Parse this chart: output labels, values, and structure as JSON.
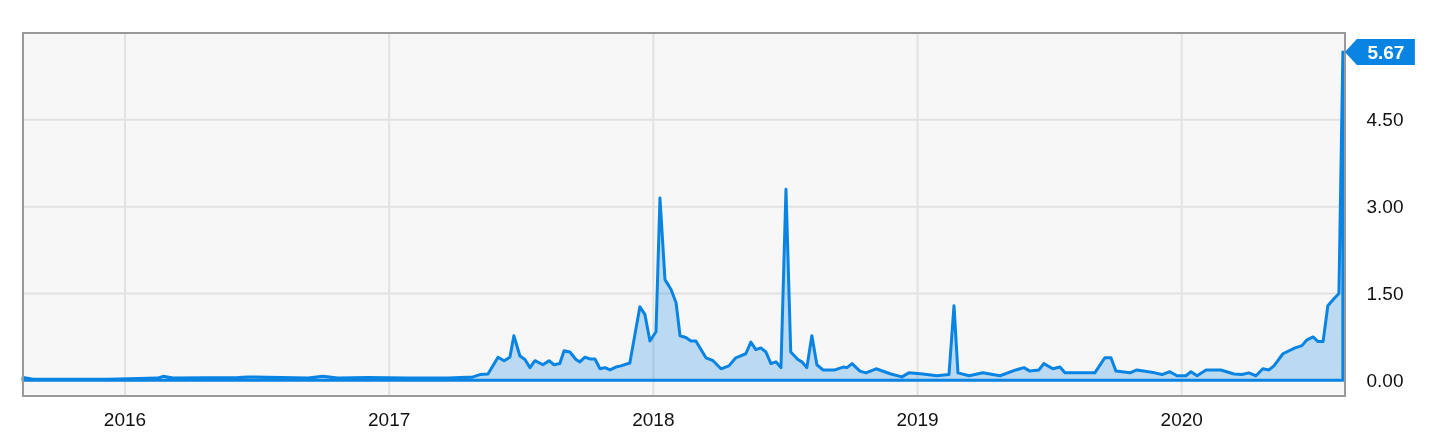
{
  "chart_data": {
    "type": "area",
    "xlim": [
      2015.614,
      2020.618
    ],
    "ylim": [
      -0.27,
      6.0
    ],
    "xticks": [
      2016,
      2017,
      2018,
      2019,
      2020
    ],
    "yticks": [
      {
        "value": 0,
        "label": "0.00"
      },
      {
        "value": 1.5,
        "label": "1.50"
      },
      {
        "value": 3,
        "label": "3.00"
      },
      {
        "value": 4.5,
        "label": "4.50"
      }
    ],
    "grid": true,
    "x": [
      2015.614,
      2015.652,
      2015.936,
      2016.125,
      2016.144,
      2016.182,
      2016.428,
      2016.466,
      2016.693,
      2016.749,
      2016.806,
      2016.92,
      2017.071,
      2017.223,
      2017.317,
      2017.344,
      2017.374,
      2017.412,
      2017.435,
      2017.457,
      2017.472,
      2017.495,
      2017.514,
      2017.533,
      2017.552,
      2017.582,
      2017.605,
      2017.624,
      2017.646,
      2017.662,
      2017.684,
      2017.707,
      2017.722,
      2017.741,
      2017.76,
      2017.779,
      2017.798,
      2017.817,
      2017.836,
      2017.858,
      2017.877,
      2017.911,
      2017.949,
      2017.968,
      2017.987,
      2018.01,
      2018.025,
      2018.044,
      2018.067,
      2018.086,
      2018.101,
      2018.123,
      2018.142,
      2018.161,
      2018.199,
      2018.226,
      2018.256,
      2018.286,
      2018.312,
      2018.35,
      2018.369,
      2018.388,
      2018.407,
      2018.426,
      2018.445,
      2018.464,
      2018.483,
      2018.502,
      2018.52,
      2018.547,
      2018.562,
      2018.581,
      2018.6,
      2018.619,
      2018.642,
      2018.687,
      2018.718,
      2018.733,
      2018.752,
      2018.782,
      2018.805,
      2018.843,
      2018.899,
      2018.941,
      2018.967,
      2019.02,
      2019.073,
      2019.119,
      2019.138,
      2019.153,
      2019.195,
      2019.247,
      2019.312,
      2019.372,
      2019.403,
      2019.425,
      2019.459,
      2019.478,
      2019.512,
      2019.539,
      2019.558,
      2019.671,
      2019.709,
      2019.732,
      2019.751,
      2019.804,
      2019.83,
      2019.898,
      2019.925,
      2019.955,
      2019.982,
      2020.016,
      2020.035,
      2020.058,
      2020.092,
      2020.148,
      2020.198,
      2020.228,
      2020.254,
      2020.281,
      2020.307,
      2020.33,
      2020.349,
      2020.383,
      2020.429,
      2020.455,
      2020.474,
      2020.497,
      2020.516,
      2020.535,
      2020.553,
      2020.576,
      2020.595,
      2020.61
    ],
    "series": [
      {
        "color": "#0984e3",
        "values": [
          0.05,
          0.02,
          0.02,
          0.04,
          0.07,
          0.04,
          0.05,
          0.06,
          0.04,
          0.07,
          0.04,
          0.05,
          0.04,
          0.04,
          0.06,
          0.1,
          0.11,
          0.4,
          0.34,
          0.4,
          0.77,
          0.42,
          0.36,
          0.22,
          0.34,
          0.27,
          0.34,
          0.27,
          0.29,
          0.51,
          0.49,
          0.36,
          0.32,
          0.4,
          0.37,
          0.37,
          0.2,
          0.22,
          0.18,
          0.23,
          0.25,
          0.3,
          1.27,
          1.14,
          0.68,
          0.84,
          3.15,
          1.74,
          1.57,
          1.34,
          0.77,
          0.74,
          0.68,
          0.68,
          0.39,
          0.34,
          0.2,
          0.25,
          0.39,
          0.46,
          0.66,
          0.53,
          0.56,
          0.49,
          0.29,
          0.32,
          0.22,
          3.3,
          0.49,
          0.36,
          0.32,
          0.22,
          0.77,
          0.27,
          0.18,
          0.18,
          0.23,
          0.22,
          0.29,
          0.16,
          0.13,
          0.2,
          0.11,
          0.06,
          0.13,
          0.11,
          0.08,
          0.1,
          1.29,
          0.13,
          0.08,
          0.13,
          0.08,
          0.18,
          0.22,
          0.16,
          0.18,
          0.29,
          0.2,
          0.23,
          0.13,
          0.13,
          0.39,
          0.39,
          0.16,
          0.13,
          0.18,
          0.13,
          0.1,
          0.15,
          0.08,
          0.08,
          0.15,
          0.08,
          0.18,
          0.18,
          0.11,
          0.1,
          0.13,
          0.08,
          0.2,
          0.18,
          0.25,
          0.46,
          0.56,
          0.6,
          0.7,
          0.75,
          0.67,
          0.67,
          1.29,
          1.41,
          1.5,
          5.67
        ],
        "value_labels": [
          null,
          null,
          null,
          null,
          null,
          null,
          null,
          null,
          null,
          null,
          null,
          null,
          null,
          null,
          null,
          null,
          null,
          null,
          null,
          null,
          null,
          null,
          null,
          null,
          null,
          null,
          null,
          null,
          null,
          null,
          null,
          null,
          null,
          null,
          null,
          null,
          null,
          null,
          null,
          null,
          null,
          null,
          null,
          null,
          null,
          null,
          null,
          null,
          null,
          null,
          null,
          null,
          null,
          null,
          null,
          null,
          null,
          null,
          null,
          null,
          null,
          null,
          null,
          null,
          null,
          null,
          null,
          null,
          null,
          null,
          null,
          null,
          null,
          null,
          null,
          null,
          null,
          null,
          null,
          null,
          null,
          null,
          null,
          null,
          null,
          null,
          null,
          null,
          null,
          null,
          null,
          null,
          null,
          null,
          null,
          null,
          null,
          null,
          null,
          null,
          null,
          null,
          null,
          null,
          null,
          null,
          null,
          null,
          null,
          null,
          null,
          null,
          null,
          null,
          null,
          null,
          null,
          null,
          null,
          null,
          null,
          null,
          null,
          null,
          null,
          null,
          null,
          null,
          null,
          null,
          null,
          null,
          null,
          "5.67"
        ]
      }
    ]
  }
}
